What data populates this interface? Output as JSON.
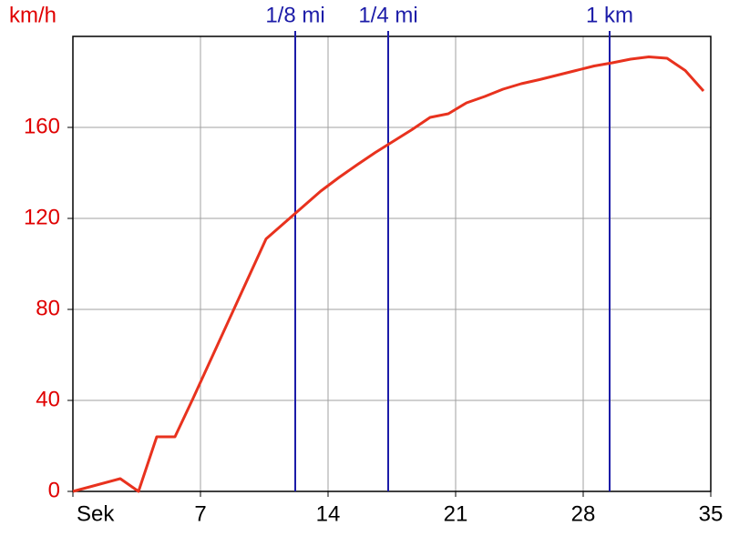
{
  "chart_data": {
    "type": "line",
    "y_label": "km/h",
    "x": [
      0,
      2.6,
      3.6,
      4.6,
      5.6,
      6.6,
      10.6,
      11.6,
      12.6,
      13.6,
      14.6,
      15.6,
      16.6,
      17.6,
      18.6,
      19.6,
      20.6,
      21.6,
      22.6,
      23.6,
      24.6,
      25.6,
      26.6,
      27.6,
      28.6,
      29.6,
      30.6,
      31.6,
      32.6,
      33.6,
      34.6
    ],
    "series": [
      {
        "color": "#e8321e",
        "values": [
          0,
          5.6,
          0,
          24,
          24,
          41,
          111,
          118,
          125,
          132,
          138,
          143.6,
          149,
          154,
          159,
          164.4,
          166,
          170.8,
          173.6,
          176.8,
          179.2,
          181,
          183,
          185,
          187,
          188.4,
          190,
          191,
          190.4,
          185,
          176
        ]
      }
    ],
    "xlim": [
      0,
      35
    ],
    "ylim": [
      0,
      200
    ],
    "xticks": [
      {
        "value": 0,
        "label": "Sek"
      },
      7,
      14,
      21,
      28,
      35
    ],
    "yticks": [
      0,
      40,
      80,
      120,
      160
    ],
    "grid": true,
    "markers": [
      {
        "label": "1/8 mi",
        "value": 12.2
      },
      {
        "label": "1/4 mi",
        "value": 17.3
      },
      {
        "label": "1 km",
        "value": 29.45
      }
    ],
    "marker_color": "#1c1ca8",
    "ytick_color": "#e00000",
    "xtick_color": "#000000"
  }
}
